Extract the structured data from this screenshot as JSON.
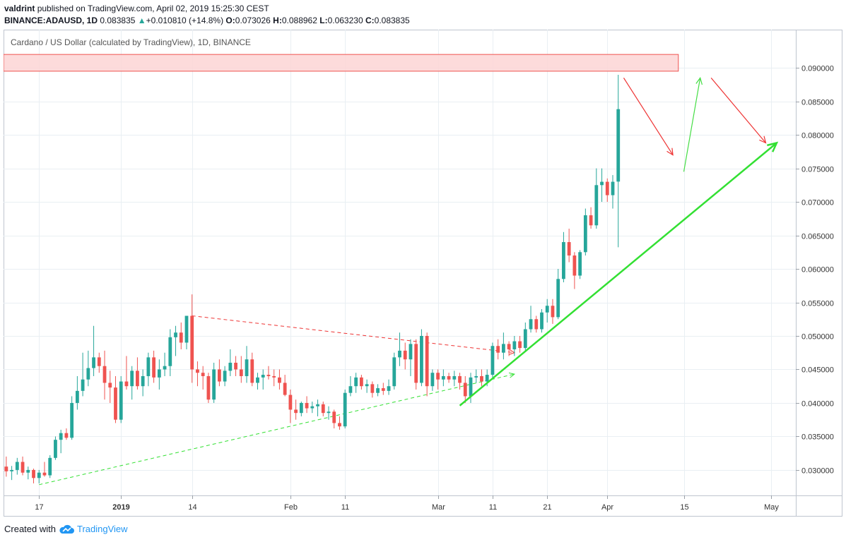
{
  "header": {
    "author": "valdrint",
    "published_text": "published on TradingView.com, April 02, 2019 15:25:30 CEST",
    "symbol": "BINANCE:ADAUSD, 1D",
    "last": "0.083835",
    "change_arrow": "▲",
    "change": "+0.010810 (+14.8%)",
    "o_label": "O:",
    "o_value": "0.073026",
    "h_label": "H:",
    "h_value": "0.088962",
    "l_label": "L:",
    "l_value": "0.063230",
    "c_label": "C:",
    "c_value": "0.083835"
  },
  "footer": {
    "created_with": "Created with",
    "brand": "TradingView",
    "logo_icon": "tradingview-cloud-icon"
  },
  "colors": {
    "up": "#26a69a",
    "down": "#ef5350",
    "grid": "#e9eff3",
    "resistance_fill": "#fdd5d5",
    "resistance_border": "#ef5350",
    "support_line": "#33e033",
    "projection_down": "#ee3333",
    "projection_up": "#44dd44"
  },
  "chart_data": {
    "type": "candlestick",
    "title": "Cardano / US Dollar (calculated by TradingView), 1D, BINANCE",
    "xlabel": "",
    "ylabel": "",
    "ylim": [
      0.0262,
      0.0957
    ],
    "grid": true,
    "x_ticks": [
      "17",
      "2019",
      "14",
      "Feb",
      "11",
      "Mar",
      "11",
      "21",
      "Apr",
      "15",
      "May"
    ],
    "x_tick_index": [
      0,
      15,
      28,
      46,
      56,
      73,
      83,
      93,
      104,
      118,
      134
    ],
    "y_ticks": [
      "0.030000",
      "0.035000",
      "0.040000",
      "0.045000",
      "0.050000",
      "0.055000",
      "0.060000",
      "0.065000",
      "0.070000",
      "0.075000",
      "0.080000",
      "0.085000",
      "0.090000"
    ],
    "y_tick_values": [
      0.03,
      0.035,
      0.04,
      0.045,
      0.05,
      0.055,
      0.06,
      0.065,
      0.07,
      0.075,
      0.08,
      0.085,
      0.09
    ],
    "x_domain": [
      -6.5,
      138.5
    ],
    "candles": [
      {
        "i": -6,
        "o": 0.0305,
        "h": 0.032,
        "l": 0.029,
        "c": 0.0298
      },
      {
        "i": -5,
        "o": 0.0298,
        "h": 0.0306,
        "l": 0.0285,
        "c": 0.03
      },
      {
        "i": -4,
        "o": 0.03,
        "h": 0.0318,
        "l": 0.0293,
        "c": 0.0312
      },
      {
        "i": -3,
        "o": 0.0312,
        "h": 0.032,
        "l": 0.0292,
        "c": 0.0296
      },
      {
        "i": -2,
        "o": 0.0296,
        "h": 0.0305,
        "l": 0.0286,
        "c": 0.03
      },
      {
        "i": -1,
        "o": 0.03,
        "h": 0.0302,
        "l": 0.028,
        "c": 0.0288
      },
      {
        "i": 0,
        "o": 0.0288,
        "h": 0.03,
        "l": 0.028,
        "c": 0.0296
      },
      {
        "i": 1,
        "o": 0.0296,
        "h": 0.0312,
        "l": 0.029,
        "c": 0.0292
      },
      {
        "i": 2,
        "o": 0.0292,
        "h": 0.0322,
        "l": 0.0288,
        "c": 0.0318
      },
      {
        "i": 3,
        "o": 0.0318,
        "h": 0.035,
        "l": 0.0315,
        "c": 0.0345
      },
      {
        "i": 4,
        "o": 0.0345,
        "h": 0.036,
        "l": 0.0325,
        "c": 0.0355
      },
      {
        "i": 5,
        "o": 0.0355,
        "h": 0.0362,
        "l": 0.0345,
        "c": 0.0348
      },
      {
        "i": 6,
        "o": 0.0348,
        "h": 0.041,
        "l": 0.0345,
        "c": 0.04
      },
      {
        "i": 7,
        "o": 0.04,
        "h": 0.044,
        "l": 0.039,
        "c": 0.0418
      },
      {
        "i": 8,
        "o": 0.0418,
        "h": 0.0475,
        "l": 0.041,
        "c": 0.0435
      },
      {
        "i": 9,
        "o": 0.0435,
        "h": 0.0478,
        "l": 0.0425,
        "c": 0.0452
      },
      {
        "i": 10,
        "o": 0.0452,
        "h": 0.0515,
        "l": 0.044,
        "c": 0.0468
      },
      {
        "i": 11,
        "o": 0.0468,
        "h": 0.0475,
        "l": 0.0445,
        "c": 0.0455
      },
      {
        "i": 12,
        "o": 0.0455,
        "h": 0.0478,
        "l": 0.0405,
        "c": 0.043
      },
      {
        "i": 13,
        "o": 0.043,
        "h": 0.0448,
        "l": 0.04,
        "c": 0.0423
      },
      {
        "i": 14,
        "o": 0.0423,
        "h": 0.044,
        "l": 0.037,
        "c": 0.0375
      },
      {
        "i": 15,
        "o": 0.0375,
        "h": 0.044,
        "l": 0.037,
        "c": 0.0432
      },
      {
        "i": 16,
        "o": 0.0432,
        "h": 0.047,
        "l": 0.042,
        "c": 0.0425
      },
      {
        "i": 17,
        "o": 0.0425,
        "h": 0.0455,
        "l": 0.0405,
        "c": 0.0448
      },
      {
        "i": 18,
        "o": 0.0448,
        "h": 0.0468,
        "l": 0.042,
        "c": 0.0425
      },
      {
        "i": 19,
        "o": 0.0425,
        "h": 0.045,
        "l": 0.041,
        "c": 0.044
      },
      {
        "i": 20,
        "o": 0.044,
        "h": 0.0475,
        "l": 0.0425,
        "c": 0.0468
      },
      {
        "i": 21,
        "o": 0.0468,
        "h": 0.0478,
        "l": 0.043,
        "c": 0.0438
      },
      {
        "i": 22,
        "o": 0.0438,
        "h": 0.0465,
        "l": 0.042,
        "c": 0.045
      },
      {
        "i": 23,
        "o": 0.045,
        "h": 0.0475,
        "l": 0.044,
        "c": 0.0455
      },
      {
        "i": 24,
        "o": 0.0455,
        "h": 0.051,
        "l": 0.044,
        "c": 0.0498
      },
      {
        "i": 25,
        "o": 0.0498,
        "h": 0.0515,
        "l": 0.047,
        "c": 0.0505
      },
      {
        "i": 26,
        "o": 0.0505,
        "h": 0.052,
        "l": 0.048,
        "c": 0.049
      },
      {
        "i": 27,
        "o": 0.049,
        "h": 0.053,
        "l": 0.048,
        "c": 0.053
      },
      {
        "i": 28,
        "o": 0.053,
        "h": 0.0562,
        "l": 0.043,
        "c": 0.045
      },
      {
        "i": 29,
        "o": 0.045,
        "h": 0.0462,
        "l": 0.0425,
        "c": 0.0445
      },
      {
        "i": 30,
        "o": 0.0445,
        "h": 0.0455,
        "l": 0.042,
        "c": 0.044
      },
      {
        "i": 31,
        "o": 0.044,
        "h": 0.0445,
        "l": 0.04,
        "c": 0.0405
      },
      {
        "i": 32,
        "o": 0.0405,
        "h": 0.046,
        "l": 0.04,
        "c": 0.045
      },
      {
        "i": 33,
        "o": 0.045,
        "h": 0.0465,
        "l": 0.0425,
        "c": 0.0432
      },
      {
        "i": 34,
        "o": 0.0432,
        "h": 0.0455,
        "l": 0.0425,
        "c": 0.0448
      },
      {
        "i": 35,
        "o": 0.0448,
        "h": 0.048,
        "l": 0.044,
        "c": 0.046
      },
      {
        "i": 36,
        "o": 0.046,
        "h": 0.047,
        "l": 0.044,
        "c": 0.045
      },
      {
        "i": 37,
        "o": 0.045,
        "h": 0.047,
        "l": 0.043,
        "c": 0.044
      },
      {
        "i": 38,
        "o": 0.044,
        "h": 0.0485,
        "l": 0.043,
        "c": 0.0465
      },
      {
        "i": 39,
        "o": 0.0465,
        "h": 0.0475,
        "l": 0.0425,
        "c": 0.043
      },
      {
        "i": 40,
        "o": 0.043,
        "h": 0.0445,
        "l": 0.042,
        "c": 0.0438
      },
      {
        "i": 41,
        "o": 0.0438,
        "h": 0.045,
        "l": 0.042,
        "c": 0.0442
      },
      {
        "i": 42,
        "o": 0.0442,
        "h": 0.0455,
        "l": 0.0435,
        "c": 0.044
      },
      {
        "i": 43,
        "o": 0.044,
        "h": 0.045,
        "l": 0.0425,
        "c": 0.0438
      },
      {
        "i": 44,
        "o": 0.0438,
        "h": 0.045,
        "l": 0.042,
        "c": 0.043
      },
      {
        "i": 45,
        "o": 0.043,
        "h": 0.0442,
        "l": 0.041,
        "c": 0.0412
      },
      {
        "i": 46,
        "o": 0.0412,
        "h": 0.042,
        "l": 0.037,
        "c": 0.039
      },
      {
        "i": 47,
        "o": 0.039,
        "h": 0.0405,
        "l": 0.0375,
        "c": 0.0385
      },
      {
        "i": 48,
        "o": 0.0385,
        "h": 0.0402,
        "l": 0.038,
        "c": 0.04
      },
      {
        "i": 49,
        "o": 0.04,
        "h": 0.041,
        "l": 0.0385,
        "c": 0.0392
      },
      {
        "i": 50,
        "o": 0.0392,
        "h": 0.0402,
        "l": 0.0385,
        "c": 0.0395
      },
      {
        "i": 51,
        "o": 0.0395,
        "h": 0.0405,
        "l": 0.038,
        "c": 0.0398
      },
      {
        "i": 52,
        "o": 0.0398,
        "h": 0.0402,
        "l": 0.038,
        "c": 0.0385
      },
      {
        "i": 53,
        "o": 0.0385,
        "h": 0.0395,
        "l": 0.0375,
        "c": 0.0387
      },
      {
        "i": 54,
        "o": 0.0387,
        "h": 0.039,
        "l": 0.0362,
        "c": 0.037
      },
      {
        "i": 55,
        "o": 0.037,
        "h": 0.038,
        "l": 0.036,
        "c": 0.0365
      },
      {
        "i": 56,
        "o": 0.0365,
        "h": 0.042,
        "l": 0.0362,
        "c": 0.0415
      },
      {
        "i": 57,
        "o": 0.0415,
        "h": 0.044,
        "l": 0.041,
        "c": 0.0425
      },
      {
        "i": 58,
        "o": 0.0425,
        "h": 0.0445,
        "l": 0.0415,
        "c": 0.0438
      },
      {
        "i": 59,
        "o": 0.0438,
        "h": 0.0442,
        "l": 0.042,
        "c": 0.0425
      },
      {
        "i": 60,
        "o": 0.0425,
        "h": 0.0435,
        "l": 0.0415,
        "c": 0.0428
      },
      {
        "i": 61,
        "o": 0.0428,
        "h": 0.0432,
        "l": 0.0408,
        "c": 0.0415
      },
      {
        "i": 62,
        "o": 0.0415,
        "h": 0.0428,
        "l": 0.041,
        "c": 0.0422
      },
      {
        "i": 63,
        "o": 0.0422,
        "h": 0.043,
        "l": 0.0412,
        "c": 0.0418
      },
      {
        "i": 64,
        "o": 0.0418,
        "h": 0.0435,
        "l": 0.0412,
        "c": 0.0425
      },
      {
        "i": 65,
        "o": 0.0425,
        "h": 0.0475,
        "l": 0.042,
        "c": 0.0468
      },
      {
        "i": 66,
        "o": 0.0468,
        "h": 0.0505,
        "l": 0.0455,
        "c": 0.0478
      },
      {
        "i": 67,
        "o": 0.0478,
        "h": 0.049,
        "l": 0.045,
        "c": 0.0465
      },
      {
        "i": 68,
        "o": 0.0465,
        "h": 0.0495,
        "l": 0.044,
        "c": 0.0488
      },
      {
        "i": 69,
        "o": 0.0488,
        "h": 0.0495,
        "l": 0.042,
        "c": 0.043
      },
      {
        "i": 70,
        "o": 0.043,
        "h": 0.051,
        "l": 0.0425,
        "c": 0.05
      },
      {
        "i": 71,
        "o": 0.05,
        "h": 0.0505,
        "l": 0.041,
        "c": 0.0425
      },
      {
        "i": 72,
        "o": 0.0425,
        "h": 0.045,
        "l": 0.0418,
        "c": 0.0445
      },
      {
        "i": 73,
        "o": 0.0445,
        "h": 0.045,
        "l": 0.042,
        "c": 0.0435
      },
      {
        "i": 74,
        "o": 0.0435,
        "h": 0.045,
        "l": 0.0425,
        "c": 0.044
      },
      {
        "i": 75,
        "o": 0.044,
        "h": 0.0445,
        "l": 0.043,
        "c": 0.0435
      },
      {
        "i": 76,
        "o": 0.0435,
        "h": 0.0448,
        "l": 0.0425,
        "c": 0.044
      },
      {
        "i": 77,
        "o": 0.044,
        "h": 0.0445,
        "l": 0.042,
        "c": 0.043
      },
      {
        "i": 78,
        "o": 0.043,
        "h": 0.044,
        "l": 0.04,
        "c": 0.041
      },
      {
        "i": 79,
        "o": 0.041,
        "h": 0.0445,
        "l": 0.04,
        "c": 0.0438
      },
      {
        "i": 80,
        "o": 0.0438,
        "h": 0.045,
        "l": 0.043,
        "c": 0.044
      },
      {
        "i": 81,
        "o": 0.044,
        "h": 0.045,
        "l": 0.0425,
        "c": 0.0432
      },
      {
        "i": 82,
        "o": 0.0432,
        "h": 0.045,
        "l": 0.0425,
        "c": 0.0442
      },
      {
        "i": 83,
        "o": 0.0442,
        "h": 0.049,
        "l": 0.0438,
        "c": 0.0485
      },
      {
        "i": 84,
        "o": 0.0485,
        "h": 0.0495,
        "l": 0.0465,
        "c": 0.0475
      },
      {
        "i": 85,
        "o": 0.0475,
        "h": 0.0505,
        "l": 0.0465,
        "c": 0.0488
      },
      {
        "i": 86,
        "o": 0.0488,
        "h": 0.0492,
        "l": 0.047,
        "c": 0.048
      },
      {
        "i": 87,
        "o": 0.048,
        "h": 0.05,
        "l": 0.047,
        "c": 0.0492
      },
      {
        "i": 88,
        "o": 0.0492,
        "h": 0.05,
        "l": 0.0475,
        "c": 0.0482
      },
      {
        "i": 89,
        "o": 0.0482,
        "h": 0.052,
        "l": 0.0478,
        "c": 0.051
      },
      {
        "i": 90,
        "o": 0.051,
        "h": 0.0545,
        "l": 0.0505,
        "c": 0.0525
      },
      {
        "i": 91,
        "o": 0.0525,
        "h": 0.053,
        "l": 0.0505,
        "c": 0.051
      },
      {
        "i": 92,
        "o": 0.051,
        "h": 0.054,
        "l": 0.0505,
        "c": 0.0535
      },
      {
        "i": 93,
        "o": 0.0535,
        "h": 0.0555,
        "l": 0.052,
        "c": 0.0545
      },
      {
        "i": 94,
        "o": 0.0545,
        "h": 0.0555,
        "l": 0.0518,
        "c": 0.0528
      },
      {
        "i": 95,
        "o": 0.0528,
        "h": 0.06,
        "l": 0.0525,
        "c": 0.0585
      },
      {
        "i": 96,
        "o": 0.0585,
        "h": 0.0655,
        "l": 0.058,
        "c": 0.064
      },
      {
        "i": 97,
        "o": 0.064,
        "h": 0.066,
        "l": 0.061,
        "c": 0.062
      },
      {
        "i": 98,
        "o": 0.062,
        "h": 0.0625,
        "l": 0.057,
        "c": 0.059
      },
      {
        "i": 99,
        "o": 0.059,
        "h": 0.0628,
        "l": 0.0585,
        "c": 0.0625
      },
      {
        "i": 100,
        "o": 0.0625,
        "h": 0.069,
        "l": 0.062,
        "c": 0.068
      },
      {
        "i": 101,
        "o": 0.068,
        "h": 0.0692,
        "l": 0.066,
        "c": 0.0665
      },
      {
        "i": 102,
        "o": 0.0665,
        "h": 0.075,
        "l": 0.066,
        "c": 0.0725
      },
      {
        "i": 103,
        "o": 0.0725,
        "h": 0.075,
        "l": 0.07,
        "c": 0.073
      },
      {
        "i": 104,
        "o": 0.073,
        "h": 0.0735,
        "l": 0.07,
        "c": 0.071
      },
      {
        "i": 105,
        "o": 0.071,
        "h": 0.074,
        "l": 0.069,
        "c": 0.073
      },
      {
        "i": 106,
        "o": 0.073026,
        "h": 0.088962,
        "l": 0.06323,
        "c": 0.083835
      }
    ],
    "annotations": {
      "resistance_zone": {
        "y_low": 0.0895,
        "y_high": 0.092,
        "x_start": -6.5,
        "x_end": 117
      },
      "dashed_upper": {
        "from": [
          28,
          0.053
        ],
        "to": [
          87,
          0.0475
        ],
        "color": "red"
      },
      "dashed_lower": {
        "from": [
          0,
          0.0278
        ],
        "to": [
          87,
          0.0443
        ],
        "color": "green"
      },
      "support_line": {
        "from": [
          77,
          0.0396
        ],
        "to": [
          135,
          0.0788
        ]
      },
      "projection_down_1": {
        "from": [
          107,
          0.0885
        ],
        "to": [
          116,
          0.077
        ]
      },
      "projection_up": {
        "from": [
          118,
          0.0745
        ],
        "to": [
          121,
          0.0885
        ]
      },
      "projection_down_2": {
        "from": [
          123,
          0.0885
        ],
        "to": [
          133,
          0.0788
        ]
      }
    }
  }
}
